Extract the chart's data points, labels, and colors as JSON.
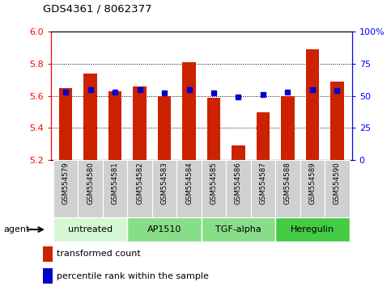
{
  "title": "GDS4361 / 8062377",
  "samples": [
    "GSM554579",
    "GSM554580",
    "GSM554581",
    "GSM554582",
    "GSM554583",
    "GSM554584",
    "GSM554585",
    "GSM554586",
    "GSM554587",
    "GSM554588",
    "GSM554589",
    "GSM554590"
  ],
  "red_values": [
    5.65,
    5.74,
    5.63,
    5.66,
    5.6,
    5.81,
    5.59,
    5.29,
    5.5,
    5.6,
    5.89,
    5.69
  ],
  "blue_values": [
    53,
    55,
    53,
    55,
    52,
    55,
    52,
    49,
    51,
    53,
    55,
    54
  ],
  "ylim_left": [
    5.2,
    6.0
  ],
  "ylim_right": [
    0,
    100
  ],
  "yticks_left": [
    5.2,
    5.4,
    5.6,
    5.8,
    6.0
  ],
  "yticks_right": [
    0,
    25,
    50,
    75,
    100
  ],
  "ytick_labels_right": [
    "0",
    "25",
    "50",
    "75",
    "100%"
  ],
  "groups": [
    {
      "label": "untreated",
      "start": 0,
      "end": 3,
      "color": "#d4f7d4"
    },
    {
      "label": "AP1510",
      "start": 3,
      "end": 6,
      "color": "#88dd88"
    },
    {
      "label": "TGF-alpha",
      "start": 6,
      "end": 9,
      "color": "#88dd88"
    },
    {
      "label": "Heregulin",
      "start": 9,
      "end": 12,
      "color": "#44cc44"
    }
  ],
  "bar_color": "#cc2200",
  "dot_color": "#0000cc",
  "sample_bg": "#d0d0d0",
  "bar_width": 0.55,
  "legend_red": "transformed count",
  "legend_blue": "percentile rank within the sample"
}
